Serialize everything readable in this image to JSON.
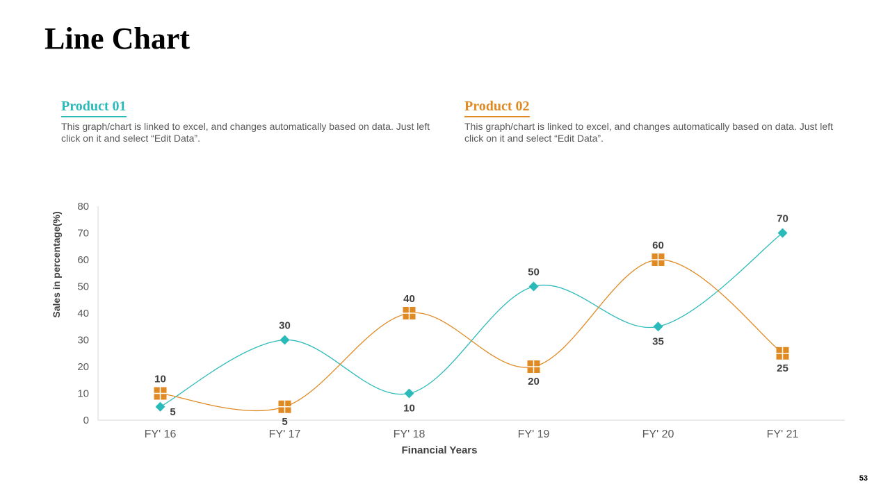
{
  "slide": {
    "title": "Line Chart",
    "page_number": "53"
  },
  "products": [
    {
      "heading": "Product 01",
      "description": "This graph/chart is linked to excel, and changes automatically based on data. Just left click on it and select “Edit Data”.",
      "color": "#2ABAB9"
    },
    {
      "heading": "Product 02",
      "description": "This graph/chart is linked to excel, and changes automatically based on data. Just left click on it and select “Edit Data”.",
      "color": "#E08A24"
    }
  ],
  "chart_data": {
    "type": "line",
    "categories": [
      "FY' 16",
      "FY' 17",
      "FY' 18",
      "FY' 19",
      "FY' 20",
      "FY' 21"
    ],
    "series": [
      {
        "color": "#2ABAB9",
        "marker": "diamond",
        "values": [
          5,
          30,
          10,
          50,
          35,
          70
        ]
      },
      {
        "color": "#E08A24",
        "marker": "square",
        "values": [
          10,
          5,
          40,
          20,
          60,
          25
        ]
      }
    ],
    "xlabel": "Financial Years",
    "ylabel": "Sales in percentage(%)",
    "ylim": [
      0,
      80
    ],
    "yticks": [
      0,
      10,
      20,
      30,
      40,
      50,
      60,
      70,
      80
    ],
    "grid": false,
    "smooth": true,
    "data_labels": true
  }
}
